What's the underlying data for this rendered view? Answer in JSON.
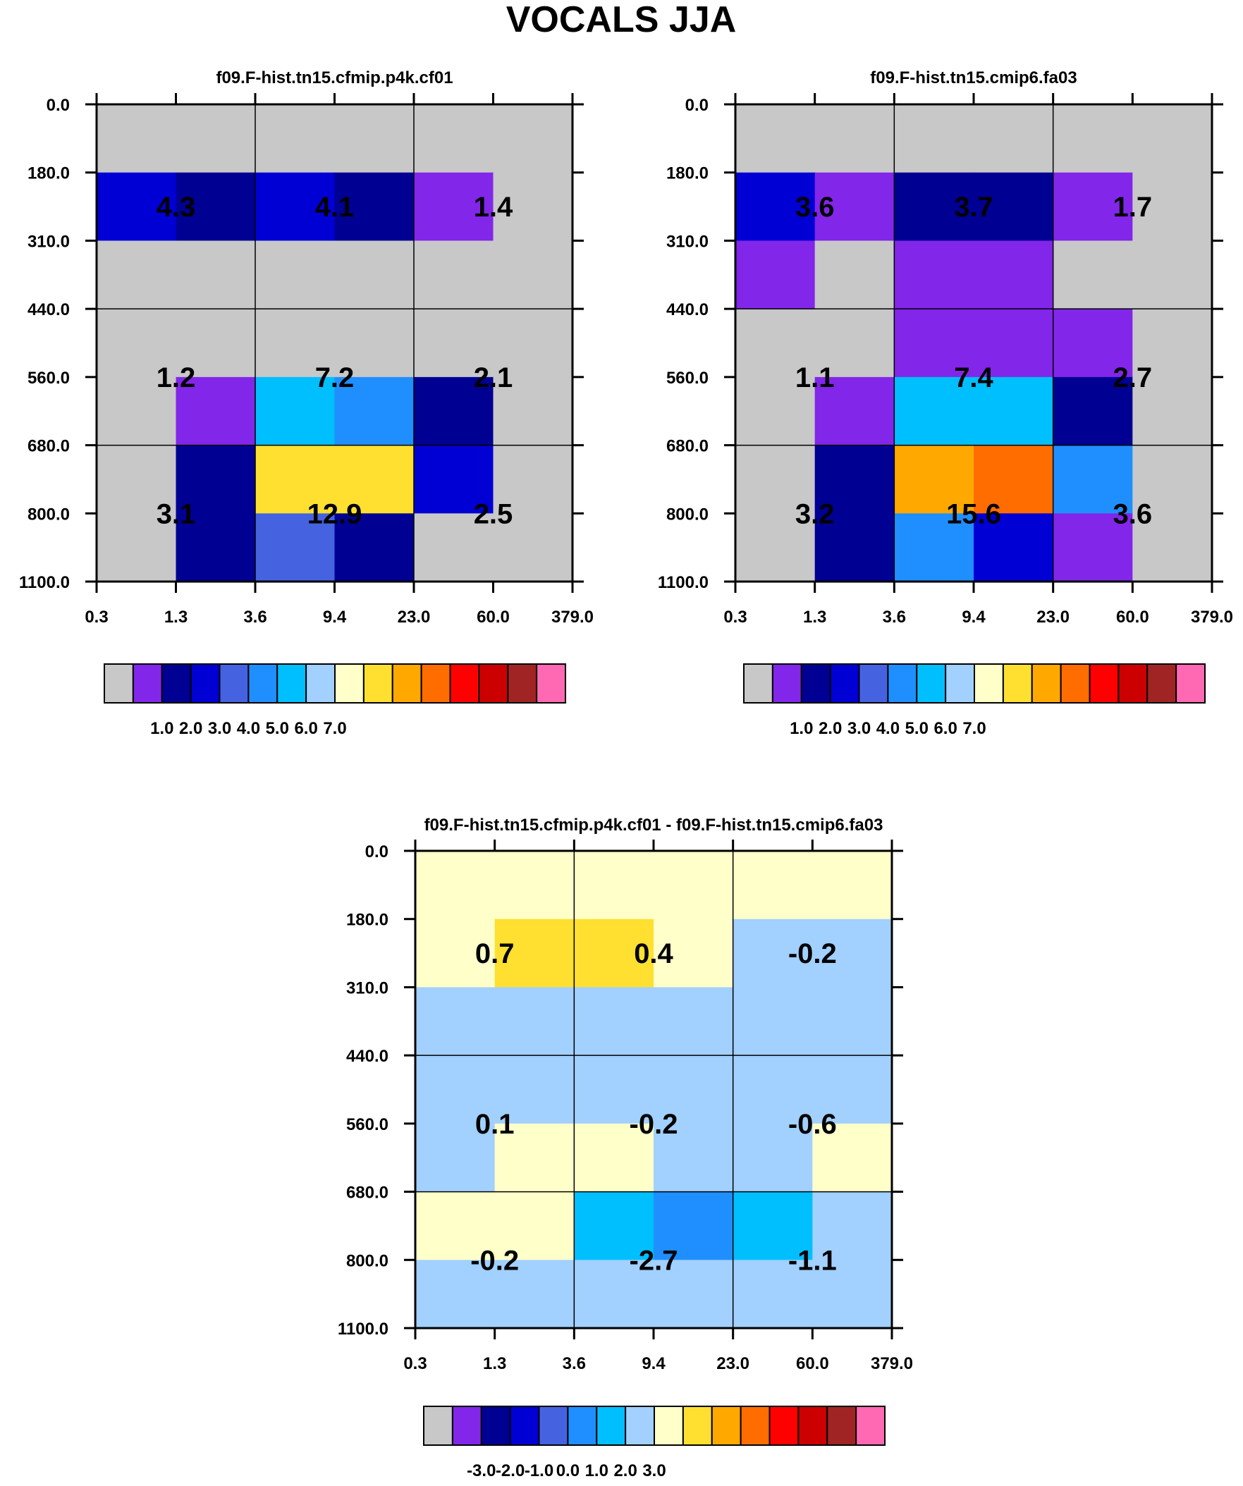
{
  "page_title": "VOCALS JJA",
  "colors": {
    "sequential": [
      "#c8c8c8",
      "#8226ea",
      "#000093",
      "#0000d4",
      "#4563e0",
      "#1f8fff",
      "#00bfff",
      "#a2d0ff",
      "#ffffca",
      "#ffe031",
      "#ffa800",
      "#ff6d00",
      "#ff0000",
      "#cc0000",
      "#a12424",
      "#ff69b4"
    ],
    "diff": [
      "#c8c8c8",
      "#8226ea",
      "#000093",
      "#0000d4",
      "#4563e0",
      "#1f8fff",
      "#00bfff",
      "#a2d0ff",
      "#ffffca",
      "#ffe031",
      "#ffa800",
      "#ff6d00",
      "#ff0000",
      "#cc0000",
      "#a12424",
      "#ff69b4"
    ]
  },
  "chart_data": [
    {
      "type": "heatmap",
      "title": "f09.F-hist.tn15.cfmip.p4k.cf01",
      "x_ticks": [
        "0.3",
        "1.3",
        "3.6",
        "9.4",
        "23.0",
        "60.0",
        "379.0"
      ],
      "y_ticks": [
        "0.0",
        "180.0",
        "310.0",
        "440.0",
        "560.0",
        "680.0",
        "800.0",
        "1100.0"
      ],
      "colorbar": "sequential",
      "colorbar_labels": [
        "1.0",
        "2.0",
        "3.0",
        "4.0",
        "5.0",
        "6.0",
        "7.0"
      ],
      "cells": [
        [
          0,
          0,
          0,
          0,
          0,
          0
        ],
        [
          3,
          2,
          3,
          2,
          1,
          0
        ],
        [
          0,
          0,
          0,
          0,
          0,
          0
        ],
        [
          0,
          0,
          0,
          0,
          0,
          0
        ],
        [
          0,
          1,
          6,
          5,
          2,
          0
        ],
        [
          0,
          2,
          9,
          9,
          3,
          0
        ],
        [
          0,
          2,
          4,
          2,
          0,
          0
        ]
      ],
      "box_labels": [
        [
          "4.3",
          "4.1",
          "1.4"
        ],
        [
          "1.2",
          "7.2",
          "2.1"
        ],
        [
          "3.1",
          "12.9",
          "2.5"
        ]
      ]
    },
    {
      "type": "heatmap",
      "title": "f09.F-hist.tn15.cmip6.fa03",
      "x_ticks": [
        "0.3",
        "1.3",
        "3.6",
        "9.4",
        "23.0",
        "60.0",
        "379.0"
      ],
      "y_ticks": [
        "0.0",
        "180.0",
        "310.0",
        "440.0",
        "560.0",
        "680.0",
        "800.0",
        "1100.0"
      ],
      "colorbar": "sequential",
      "colorbar_labels": [
        "1.0",
        "2.0",
        "3.0",
        "4.0",
        "5.0",
        "6.0",
        "7.0"
      ],
      "cells": [
        [
          0,
          0,
          0,
          0,
          0,
          0
        ],
        [
          3,
          1,
          2,
          2,
          1,
          0
        ],
        [
          1,
          0,
          1,
          1,
          0,
          0
        ],
        [
          0,
          0,
          1,
          1,
          1,
          0
        ],
        [
          0,
          1,
          6,
          6,
          2,
          0
        ],
        [
          0,
          2,
          10,
          11,
          5,
          0
        ],
        [
          0,
          2,
          5,
          3,
          1,
          0
        ]
      ],
      "box_labels": [
        [
          "3.6",
          "3.7",
          "1.7"
        ],
        [
          "1.1",
          "7.4",
          "2.7"
        ],
        [
          "3.2",
          "15.6",
          "3.6"
        ]
      ]
    },
    {
      "type": "heatmap",
      "title": "f09.F-hist.tn15.cfmip.p4k.cf01 - f09.F-hist.tn15.cmip6.fa03",
      "x_ticks": [
        "0.3",
        "1.3",
        "3.6",
        "9.4",
        "23.0",
        "60.0",
        "379.0"
      ],
      "y_ticks": [
        "0.0",
        "180.0",
        "310.0",
        "440.0",
        "560.0",
        "680.0",
        "800.0",
        "1100.0"
      ],
      "colorbar": "diff",
      "colorbar_labels": [
        "-3.0",
        "-2.0",
        "-1.0",
        "0.0",
        "1.0",
        "2.0",
        "3.0"
      ],
      "cells": [
        [
          8,
          8,
          8,
          8,
          8,
          8
        ],
        [
          8,
          9,
          9,
          8,
          7,
          7
        ],
        [
          7,
          7,
          7,
          7,
          7,
          7
        ],
        [
          7,
          7,
          7,
          7,
          7,
          7
        ],
        [
          7,
          8,
          8,
          7,
          7,
          8
        ],
        [
          8,
          8,
          6,
          5,
          6,
          7
        ],
        [
          7,
          7,
          7,
          7,
          7,
          7
        ]
      ],
      "box_labels": [
        [
          "0.7",
          "0.4",
          "-0.2"
        ],
        [
          "0.1",
          "-0.2",
          "-0.6"
        ],
        [
          "-0.2",
          "-2.7",
          "-1.1"
        ]
      ]
    }
  ]
}
